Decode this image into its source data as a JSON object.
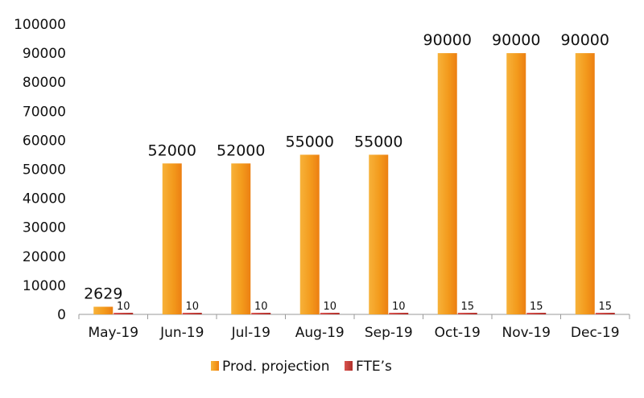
{
  "chart_data": {
    "type": "bar",
    "title": "",
    "xlabel": "",
    "ylabel": "",
    "categories": [
      "May-19",
      "Jun-19",
      "Jul-19",
      "Aug-19",
      "Sep-19",
      "Oct-19",
      "Nov-19",
      "Dec-19"
    ],
    "series": [
      {
        "name": "Prod. projection",
        "values": [
          2629,
          52000,
          52000,
          55000,
          55000,
          90000,
          90000,
          90000
        ],
        "color": "#f39a1c"
      },
      {
        "name": "FTE’s",
        "values": [
          10,
          10,
          10,
          10,
          10,
          15,
          15,
          15
        ],
        "color": "#c0392b"
      }
    ],
    "ylim": [
      0,
      100000
    ],
    "yticks": [
      0,
      10000,
      20000,
      30000,
      40000,
      50000,
      60000,
      70000,
      80000,
      90000,
      100000
    ],
    "grid": false,
    "legend_position": "bottom"
  }
}
